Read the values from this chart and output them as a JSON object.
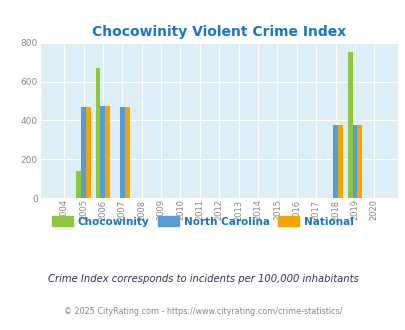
{
  "title": "Chocowinity Violent Crime Index",
  "title_color": "#1874cd",
  "years": [
    2004,
    2005,
    2006,
    2007,
    2008,
    2009,
    2010,
    2011,
    2012,
    2013,
    2014,
    2015,
    2016,
    2017,
    2018,
    2019,
    2020
  ],
  "chocowinity": [
    0,
    140,
    670,
    0,
    0,
    0,
    0,
    0,
    0,
    0,
    0,
    0,
    0,
    0,
    0,
    755,
    0
  ],
  "north_carolina": [
    0,
    470,
    475,
    470,
    0,
    0,
    0,
    0,
    0,
    0,
    0,
    0,
    0,
    0,
    375,
    375,
    0
  ],
  "national": [
    0,
    470,
    475,
    470,
    0,
    0,
    0,
    0,
    0,
    0,
    0,
    0,
    0,
    0,
    375,
    375,
    0
  ],
  "color_chocowinity": "#8dc63f",
  "color_nc": "#5b9bd5",
  "color_national": "#f0a500",
  "ylim": [
    0,
    800
  ],
  "yticks": [
    0,
    200,
    400,
    600,
    800
  ],
  "bg_color": "#ddeef6",
  "bar_width": 0.25,
  "legend_labels": [
    "Chocowinity",
    "North Carolina",
    "National"
  ],
  "legend_text_color": "#1874cd",
  "subtitle": "Crime Index corresponds to incidents per 100,000 inhabitants",
  "subtitle_color": "#333355",
  "footer": "© 2025 CityRating.com - https://www.cityrating.com/crime-statistics/",
  "footer_color": "#888888",
  "grid_color": "#ffffff",
  "tick_color": "#888888",
  "figsize": [
    4.06,
    3.3
  ],
  "dpi": 100
}
